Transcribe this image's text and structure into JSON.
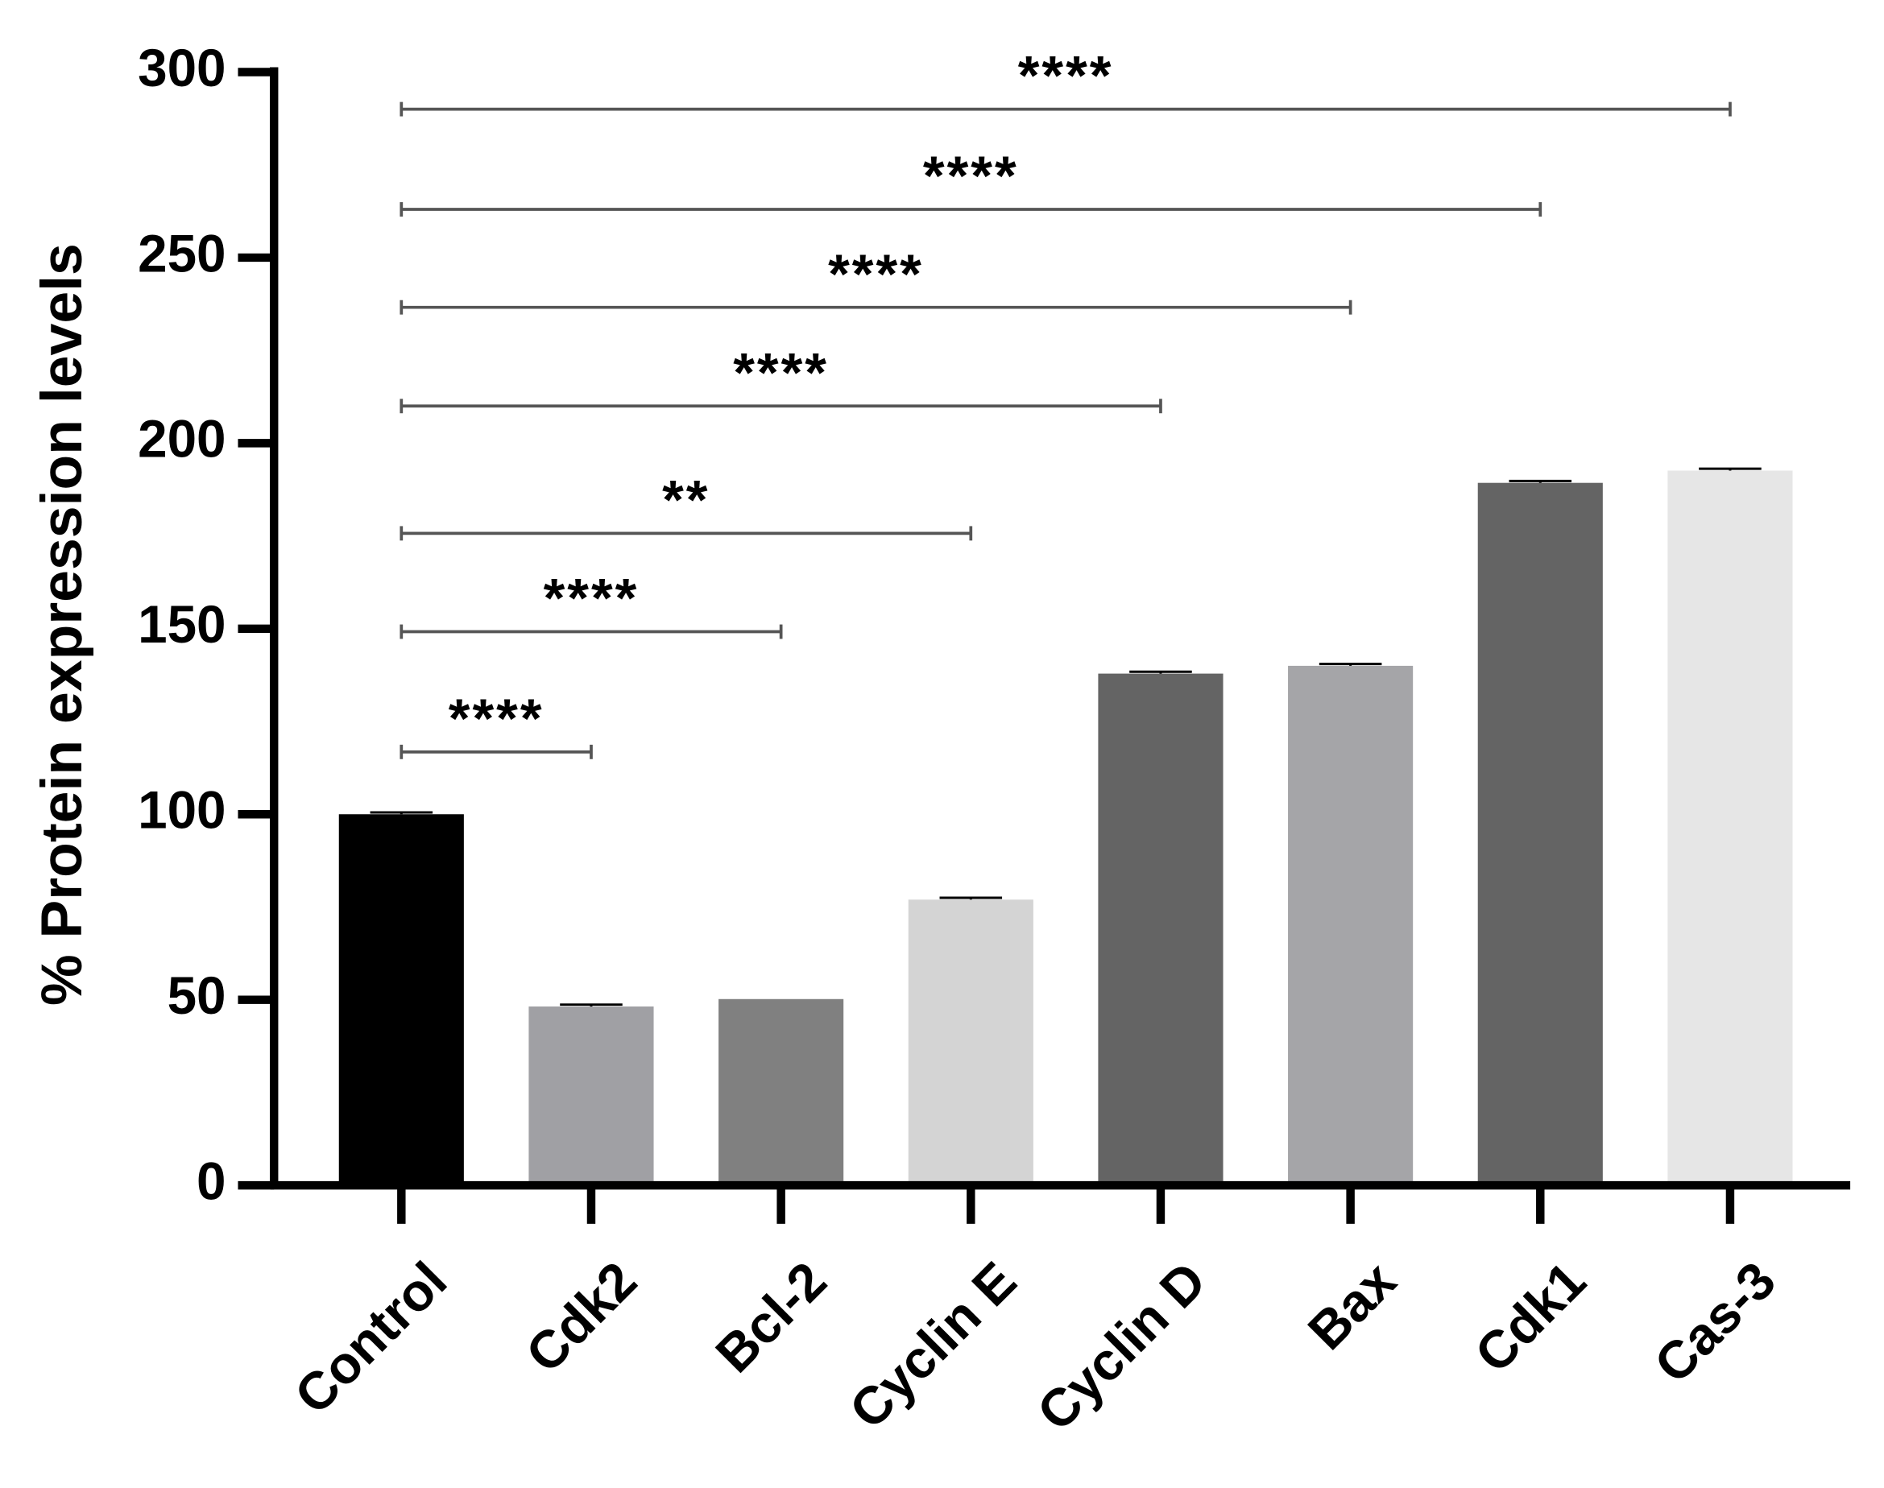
{
  "chart_data": {
    "type": "bar",
    "ylabel": "% Protein expression levels",
    "categories": [
      "Control",
      "Cdk2",
      "Bcl-2",
      "Cyclin E",
      "Cyclin D",
      "Bax",
      "Cdk1",
      "Cas-3"
    ],
    "values": [
      100,
      48.2,
      50.2,
      77,
      137.9,
      140,
      189.3,
      192.6
    ],
    "errors": [
      0.5,
      0.5,
      0,
      0.5,
      0.5,
      0.5,
      0.5,
      0.5
    ],
    "colors": [
      "#000000",
      "#a0a0a4",
      "#808080",
      "#d4d4d4",
      "#646464",
      "#a5a5a8",
      "#646464",
      "#e6e6e6"
    ],
    "ylim": [
      0,
      300
    ],
    "yticks": [
      0,
      50,
      100,
      150,
      200,
      250,
      300
    ],
    "comparisons": [
      {
        "from": "Control",
        "to": "Cdk2",
        "y": 116.8,
        "label": "****"
      },
      {
        "from": "Control",
        "to": "Bcl-2",
        "y": 149.2,
        "label": "****"
      },
      {
        "from": "Control",
        "to": "Cyclin E",
        "y": 175.7,
        "label": "**"
      },
      {
        "from": "Control",
        "to": "Cyclin D",
        "y": 210,
        "label": "****"
      },
      {
        "from": "Control",
        "to": "Bax",
        "y": 236.6,
        "label": "****"
      },
      {
        "from": "Control",
        "to": "Cdk1",
        "y": 263,
        "label": "****"
      },
      {
        "from": "Control",
        "to": "Cas-3",
        "y": 290,
        "label": "****"
      }
    ]
  }
}
